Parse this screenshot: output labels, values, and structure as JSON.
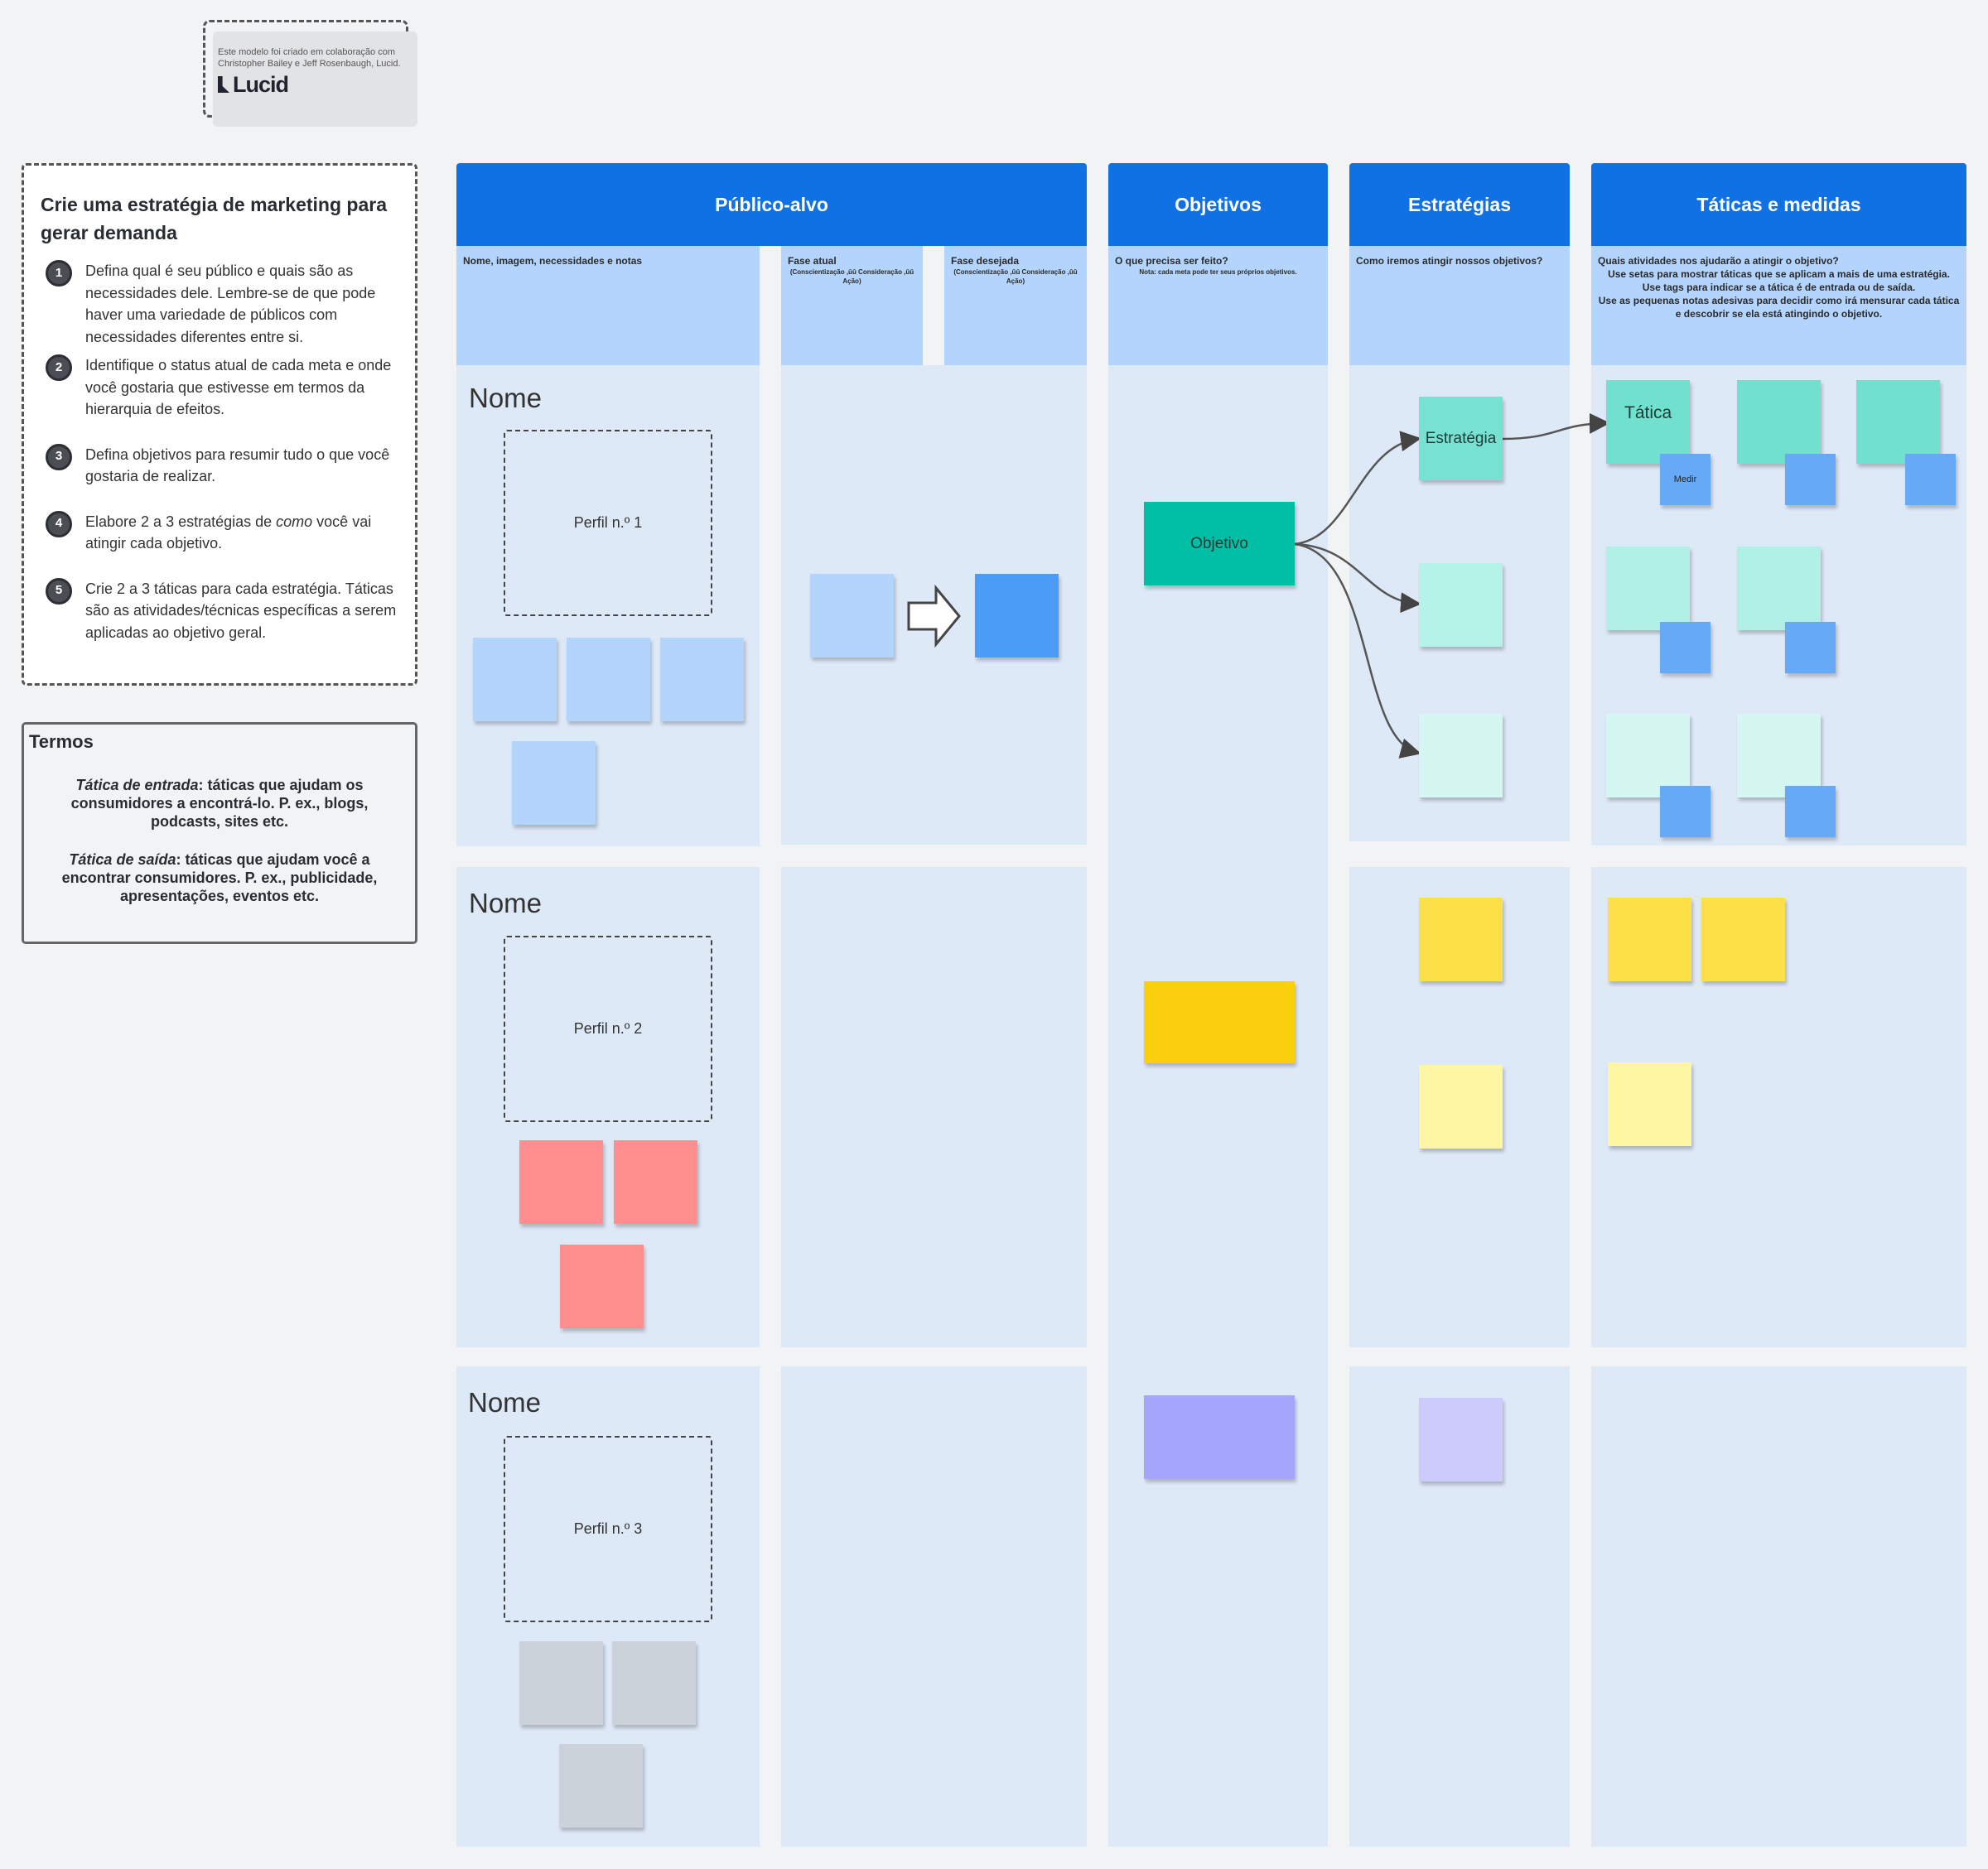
{
  "credit": {
    "text": "Este modelo foi criado em colaboração com Christopher Bailey e Jeff Rosenbaugh, Lucid.",
    "logo": "Lucid"
  },
  "instructions": {
    "title": "Crie uma estratégia de marketing para gerar demanda",
    "steps": [
      {
        "n": "1",
        "text": "Defina qual é seu público e quais são as necessidades dele. Lembre-se de que pode haver uma variedade de públicos com necessidades diferentes entre si."
      },
      {
        "n": "2",
        "text": "Identifique o status atual de cada meta e onde você gostaria que estivesse em termos da hierarquia de efeitos."
      },
      {
        "n": "3",
        "text": "Defina objetivos para resumir tudo o que você gostaria de realizar."
      },
      {
        "n": "4",
        "text_pre": "Elabore 2 a 3 estratégias de ",
        "text_em": "como",
        "text_post": " você vai atingir cada objetivo."
      },
      {
        "n": "5",
        "text": "Crie 2 a 3 táticas para cada estratégia. Táticas são as atividades/técnicas específicas a serem aplicadas ao objetivo geral."
      }
    ]
  },
  "terms": {
    "title": "Termos",
    "entry_term": "Tática de entrada",
    "entry_def": ": táticas que ajudam os consumidores a encontrá-lo. P. ex., blogs, podcasts, sites etc.",
    "exit_term": "Tática de saída",
    "exit_def": ": táticas que ajudam você a encontrar consumidores. P. ex., publicidade, apresentações, eventos etc."
  },
  "columns": {
    "audience": {
      "title": "Público-alvo",
      "sub_notes": "Nome, imagem, necessidades e notas",
      "sub_current": "Fase atual",
      "sub_current_note": "(Conscientização ,ûû Consideração ,ûû Ação)",
      "sub_desired": "Fase desejada",
      "sub_desired_note": "(Conscientização ,ûû Consideração ,ûû Ação)"
    },
    "objectives": {
      "title": "Objetivos",
      "sub": "O que precisa ser feito?",
      "note": "Nota: cada meta pode ter seus próprios objetivos."
    },
    "strategies": {
      "title": "Estratégias",
      "sub": "Como iremos atingir nossos objetivos?"
    },
    "tactics": {
      "title": "Táticas e medidas",
      "sub": "Quais atividades nos ajudarão a atingir o objetivo?",
      "lines": [
        "Use setas para mostrar táticas que se aplicam a mais de uma estratégia.",
        "Use tags para indicar se a tática é de entrada ou de saída.",
        "Use as pequenas notas adesivas para decidir como irá mensurar cada tática e descobrir se ela está atingindo o objetivo."
      ]
    }
  },
  "rows": [
    {
      "name": "Nome",
      "profile": "Perfil n.º 1"
    },
    {
      "name": "Nome",
      "profile": "Perfil n.º 2"
    },
    {
      "name": "Nome",
      "profile": "Perfil n.º 3"
    }
  ],
  "stickies": {
    "objective": "Objetivo",
    "strategy": "Estratégia",
    "tactic": "Tática",
    "measure": "Medir"
  },
  "colors": {
    "header": "#1071e5",
    "subheader": "#b3d4fc",
    "lane": "#dee9f7",
    "teal": "#00bfa5",
    "yellow": "#facf0d",
    "purple": "#a5a5fc",
    "red": "#ff8f8f",
    "gray": "#cbd2d9",
    "blue": "#4a9cf7"
  }
}
